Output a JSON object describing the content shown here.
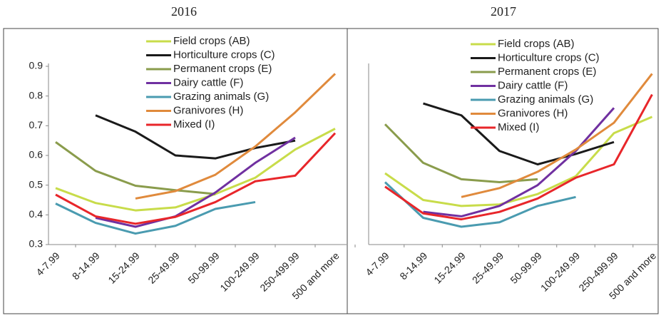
{
  "chart_data": [
    {
      "type": "line",
      "title": "2016",
      "categories": [
        "4-7.99",
        "8-14.99",
        "15-24.99",
        "25-49.99",
        "50-99.99",
        "100-249.99",
        "250-499.99",
        "500 and more"
      ],
      "series": [
        {
          "name": "Field crops (AB)",
          "color": "#c8dc4a",
          "values": [
            0.49,
            0.44,
            0.415,
            0.425,
            0.47,
            0.525,
            0.62,
            0.69
          ]
        },
        {
          "name": "Horticulture crops (C)",
          "color": "#1a1a1a",
          "values": [
            null,
            0.735,
            0.68,
            0.6,
            0.59,
            0.625,
            0.65,
            null
          ]
        },
        {
          "name": "Permanent crops (E)",
          "color": "#8a9c4c",
          "values": [
            0.645,
            0.548,
            0.498,
            0.483,
            0.47,
            null,
            null,
            null
          ]
        },
        {
          "name": "Dairy cattle (F)",
          "color": "#7030a0",
          "values": [
            null,
            0.39,
            0.36,
            0.395,
            0.475,
            0.575,
            0.66,
            null
          ]
        },
        {
          "name": "Grazing animals (G)",
          "color": "#4a9bb0",
          "values": [
            0.438,
            0.373,
            0.337,
            0.363,
            0.42,
            0.443,
            null,
            null
          ]
        },
        {
          "name": "Granivores (H)",
          "color": "#e08a3c",
          "values": [
            null,
            null,
            0.455,
            0.48,
            0.535,
            0.63,
            0.745,
            0.875
          ]
        },
        {
          "name": "Mixed (I)",
          "color": "#e8262a",
          "values": [
            0.468,
            0.395,
            0.37,
            0.393,
            0.443,
            0.513,
            0.532,
            0.675
          ]
        }
      ],
      "ylim": [
        0.3,
        0.9
      ],
      "yticks": [
        0.3,
        0.4,
        0.5,
        0.6,
        0.7,
        0.8,
        0.9
      ]
    },
    {
      "type": "line",
      "title": "2017",
      "categories": [
        "4-7.99",
        "8-14.99",
        "15-24.99",
        "25-49.99",
        "50-99.99",
        "100-249.99",
        "250-499.99",
        "500 and more"
      ],
      "series": [
        {
          "name": "Field crops (AB)",
          "color": "#c8dc4a",
          "values": [
            0.54,
            0.45,
            0.43,
            0.435,
            0.47,
            0.53,
            0.675,
            0.73
          ]
        },
        {
          "name": "Horticulture crops (C)",
          "color": "#1a1a1a",
          "values": [
            null,
            0.775,
            0.735,
            0.615,
            0.57,
            0.605,
            0.645,
            null
          ]
        },
        {
          "name": "Permanent crops (E)",
          "color": "#8a9c4c",
          "values": [
            0.705,
            0.575,
            0.52,
            0.51,
            0.52,
            null,
            null,
            null
          ]
        },
        {
          "name": "Dairy cattle (F)",
          "color": "#7030a0",
          "values": [
            null,
            0.41,
            0.395,
            0.43,
            0.5,
            0.615,
            0.76,
            null
          ]
        },
        {
          "name": "Grazing animals (G)",
          "color": "#4a9bb0",
          "values": [
            0.51,
            0.39,
            0.36,
            0.375,
            0.43,
            0.46,
            null,
            null
          ]
        },
        {
          "name": "Granivores (H)",
          "color": "#e08a3c",
          "values": [
            null,
            null,
            0.46,
            0.49,
            0.545,
            0.62,
            0.71,
            0.875
          ]
        },
        {
          "name": "Mixed (I)",
          "color": "#e8262a",
          "values": [
            0.495,
            0.405,
            0.385,
            0.41,
            0.455,
            0.525,
            0.57,
            0.805
          ]
        }
      ],
      "ylim": [
        0.3,
        0.9
      ]
    }
  ]
}
